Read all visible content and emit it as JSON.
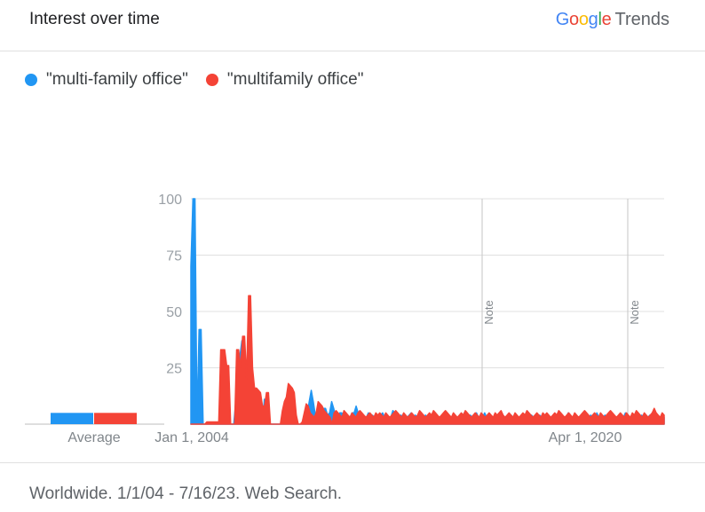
{
  "header": {
    "title": "Interest over time",
    "brand_letters": [
      {
        "ch": "G",
        "color": "#4285F4"
      },
      {
        "ch": "o",
        "color": "#EA4335"
      },
      {
        "ch": "o",
        "color": "#FBBC05"
      },
      {
        "ch": "g",
        "color": "#4285F4"
      },
      {
        "ch": "l",
        "color": "#34A853"
      },
      {
        "ch": "e",
        "color": "#EA4335"
      }
    ],
    "brand_suffix": "Trends"
  },
  "footer": {
    "text": "Worldwide. 1/1/04 - 7/16/23. Web Search."
  },
  "chart_data": {
    "type": "area",
    "x_start": "2004-01",
    "x_end": "2023-07",
    "x_tick_labels": [
      "Jan 1, 2004",
      "Apr 1, 2020"
    ],
    "y_ticks": [
      25,
      50,
      75,
      100
    ],
    "ylim": [
      0,
      100
    ],
    "grid": true,
    "legend_position": "top-left",
    "notes": [
      {
        "label": "Note",
        "date": "2016-01"
      },
      {
        "label": "Note",
        "date": "2022-01"
      }
    ],
    "average": {
      "label": "Average",
      "values": [
        2,
        2
      ]
    },
    "series": [
      {
        "name": "\"multi-family office\"",
        "color": "#2196F3",
        "values": [
          70,
          100,
          100,
          0,
          42,
          42,
          0,
          0,
          0,
          0,
          0,
          0,
          0,
          0,
          0,
          0,
          0,
          0,
          0,
          0,
          0,
          0,
          10,
          20,
          30,
          37,
          30,
          20,
          10,
          5,
          0,
          15,
          15,
          15,
          0,
          0,
          11,
          11,
          0,
          0,
          0,
          0,
          0,
          0,
          0,
          0,
          0,
          0,
          0,
          0,
          0,
          0,
          0,
          0,
          0,
          0,
          0,
          4,
          10,
          15,
          10,
          4,
          0,
          0,
          0,
          7,
          7,
          4,
          5,
          10,
          7,
          3,
          0,
          5,
          5,
          3,
          0,
          3,
          3,
          5,
          5,
          8,
          5,
          4,
          4,
          2,
          3,
          5,
          4,
          4,
          3,
          0,
          3,
          4,
          5,
          3,
          2,
          1,
          3,
          6,
          5,
          3,
          2,
          4,
          3,
          2,
          3,
          4,
          5,
          3,
          4,
          3,
          2,
          3,
          2,
          4,
          3,
          2,
          3,
          2,
          3,
          2,
          3,
          4,
          3,
          2,
          3,
          2,
          3,
          3,
          2,
          3,
          4,
          2,
          5,
          3,
          2,
          4,
          3,
          2,
          5,
          3,
          4,
          3,
          5,
          3,
          4,
          3,
          2,
          4,
          3,
          2,
          3,
          4,
          3,
          2,
          3,
          4,
          3,
          2,
          3,
          3,
          2,
          3,
          4,
          2,
          3,
          4,
          3,
          2,
          3,
          4,
          3,
          2,
          4,
          3,
          2,
          3,
          4,
          3,
          2,
          4,
          3,
          2,
          3,
          5,
          3,
          2,
          3,
          4,
          2,
          3,
          4,
          3,
          2,
          3,
          4,
          3,
          2,
          5,
          3,
          2,
          3,
          4,
          3,
          2,
          3,
          4,
          3,
          2,
          3,
          4,
          3,
          5,
          3,
          2,
          3,
          4,
          3,
          2,
          3,
          4,
          3,
          2,
          3,
          4,
          3,
          2,
          3,
          2,
          3,
          4,
          3
        ]
      },
      {
        "name": "\"multifamily office\"",
        "color": "#F44336",
        "values": [
          0,
          0,
          0,
          0,
          0,
          0,
          0,
          0,
          1,
          1,
          1,
          1,
          1,
          1,
          1,
          33,
          33,
          33,
          26,
          26,
          0,
          0,
          0,
          33,
          33,
          25,
          39,
          39,
          20,
          57,
          57,
          25,
          16,
          16,
          15,
          14,
          8,
          8,
          14,
          14,
          0,
          0,
          0,
          0,
          0,
          0,
          6,
          10,
          12,
          18,
          17,
          16,
          14,
          4,
          0,
          0,
          1,
          5,
          9,
          8,
          5,
          4,
          3,
          5,
          10,
          9,
          8,
          6,
          5,
          4,
          3,
          0,
          5,
          6,
          5,
          4,
          3,
          6,
          5,
          4,
          3,
          5,
          4,
          3,
          5,
          6,
          5,
          4,
          3,
          4,
          5,
          4,
          3,
          5,
          4,
          5,
          4,
          3,
          5,
          4,
          3,
          4,
          5,
          6,
          5,
          4,
          3,
          5,
          4,
          3,
          4,
          5,
          4,
          3,
          4,
          6,
          5,
          4,
          3,
          4,
          5,
          4,
          6,
          5,
          4,
          3,
          4,
          5,
          6,
          5,
          4,
          3,
          5,
          4,
          3,
          4,
          5,
          4,
          6,
          5,
          4,
          3,
          4,
          5,
          4,
          3,
          5,
          4,
          3,
          4,
          5,
          4,
          3,
          5,
          4,
          5,
          6,
          4,
          3,
          4,
          5,
          4,
          3,
          5,
          4,
          3,
          4,
          5,
          4,
          6,
          5,
          4,
          3,
          4,
          5,
          4,
          3,
          5,
          4,
          5,
          4,
          3,
          4,
          5,
          4,
          6,
          5,
          4,
          3,
          4,
          5,
          4,
          3,
          5,
          4,
          3,
          4,
          5,
          6,
          5,
          4,
          3,
          4,
          5,
          4,
          3,
          5,
          4,
          3,
          4,
          5,
          6,
          5,
          4,
          3,
          4,
          5,
          4,
          3,
          5,
          4,
          3,
          5,
          4,
          6,
          5,
          4,
          3,
          5,
          4,
          3,
          4,
          5,
          7,
          5,
          4,
          3,
          5,
          4
        ]
      }
    ]
  }
}
